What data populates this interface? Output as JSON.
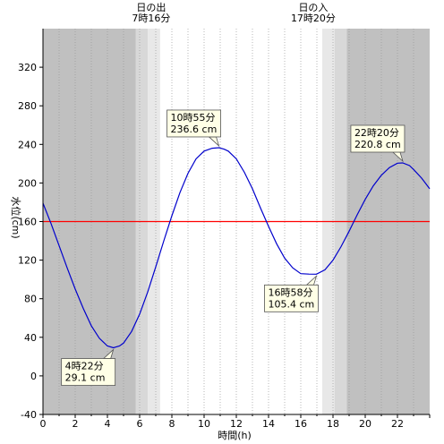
{
  "chart_data": {
    "type": "line",
    "xlabel": "時間(h)",
    "ylabel": "水位(cm)",
    "xlim": [
      0,
      24
    ],
    "ylim": [
      -40,
      360
    ],
    "x_ticks": [
      0,
      2,
      4,
      6,
      8,
      10,
      12,
      14,
      16,
      18,
      20,
      22
    ],
    "y_ticks": [
      -40,
      0,
      40,
      80,
      120,
      160,
      200,
      240,
      280,
      320
    ],
    "grid": "vertical dotted every hour",
    "reference_line": {
      "y": 160,
      "color": "#ff0000"
    },
    "series": [
      {
        "color": "#0000cc",
        "x": [
          0,
          0.5,
          1,
          1.5,
          2,
          2.5,
          3,
          3.5,
          4,
          4.37,
          4.75,
          5,
          5.5,
          6,
          6.5,
          7,
          7.5,
          8,
          8.5,
          9,
          9.5,
          10,
          10.5,
          10.92,
          11.25,
          11.5,
          12,
          12.5,
          13,
          13.5,
          14,
          14.5,
          15,
          15.5,
          16,
          16.5,
          16.97,
          17.5,
          18,
          18.5,
          19,
          19.5,
          20,
          20.5,
          21,
          21.5,
          22,
          22.33,
          22.75,
          23,
          23.5,
          24
        ],
        "y": [
          179,
          158,
          135,
          112,
          90,
          70,
          52,
          39,
          31,
          29.1,
          31,
          34,
          46,
          64,
          87,
          113,
          140,
          166,
          190,
          210,
          225,
          233,
          236,
          236.6,
          235,
          233,
          225,
          211,
          194,
          174,
          155,
          137,
          122,
          112,
          106,
          105.5,
          105.4,
          110,
          120,
          134,
          150,
          167,
          183,
          197,
          208,
          216,
          220.5,
          220.8,
          218,
          214,
          205,
          194
        ]
      }
    ],
    "night_shading": [
      {
        "from": 0,
        "to": 5.75,
        "shade": "dark"
      },
      {
        "from": 5.75,
        "to": 7.27,
        "shade": "twilight"
      },
      {
        "from": 17.33,
        "to": 18.85,
        "shade": "twilight"
      },
      {
        "from": 18.85,
        "to": 24,
        "shade": "dark"
      }
    ],
    "sun_events": [
      {
        "title": "日の出",
        "time": "7時16分",
        "x": 7.27
      },
      {
        "title": "日の入",
        "time": "17時20分",
        "x": 17.33
      }
    ],
    "annotations": [
      {
        "time": "4時22分",
        "value": "29.1 cm",
        "x": 4.37,
        "y": 29.1,
        "placement": "below-left"
      },
      {
        "time": "10時55分",
        "value": "236.6 cm",
        "x": 10.92,
        "y": 236.6,
        "placement": "above-left"
      },
      {
        "time": "16時58分",
        "value": "105.4 cm",
        "x": 16.97,
        "y": 105.4,
        "placement": "below-left"
      },
      {
        "time": "22時20分",
        "value": "220.8 cm",
        "x": 22.33,
        "y": 220.8,
        "placement": "above-left"
      }
    ],
    "colors": {
      "night": "#c0c0c0",
      "twilight_outer": "#d8d8d8",
      "twilight_inner": "#e8e8e8",
      "tooltip_bg": "#ffffe6"
    }
  }
}
